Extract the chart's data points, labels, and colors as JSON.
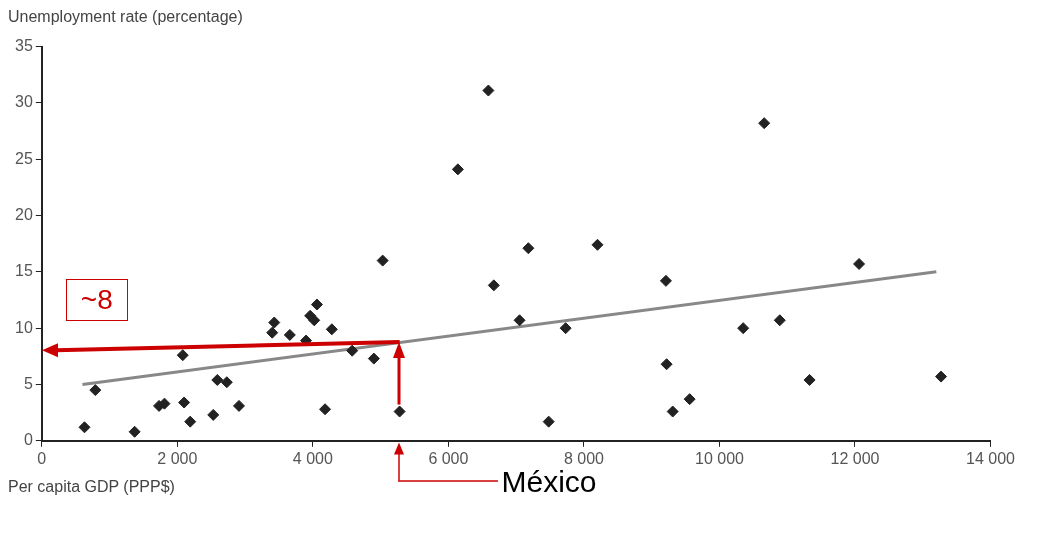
{
  "chart_data": {
    "type": "scatter",
    "xlabel": "Per capita GDP (PPP$)",
    "ylabel": "Unemployment rate (percentage)",
    "xlim": [
      0,
      14000
    ],
    "xticks": [
      0,
      {
        "value": 2000,
        "label": "2 000"
      },
      {
        "value": 4000,
        "label": "4 000"
      },
      {
        "value": 6000,
        "label": "6 000"
      },
      {
        "value": 8000,
        "label": "8 000"
      },
      {
        "value": 10000,
        "label": "10 000"
      },
      {
        "value": 12000,
        "label": "12 000"
      },
      {
        "value": 14000,
        "label": "14 000"
      }
    ],
    "ylim": [
      0,
      35
    ],
    "yticks": [
      0,
      5,
      10,
      15,
      20,
      25,
      30,
      35
    ],
    "grid": false,
    "legend": false,
    "marker": "diamond",
    "series": [
      {
        "color": "#222222",
        "x": [
          630,
          790,
          1370,
          1730,
          1810,
          2080,
          2100,
          2190,
          2530,
          2590,
          2730,
          2910,
          3400,
          3430,
          3660,
          3900,
          3960,
          4020,
          4060,
          4180,
          4280,
          4580,
          4900,
          5030,
          5280,
          6140,
          6590,
          6670,
          7050,
          7180,
          7480,
          7730,
          8200,
          9210,
          9220,
          9310,
          9560,
          10350,
          10660,
          10890,
          11330,
          12060,
          13270
        ],
        "values": [
          1.2,
          4.5,
          0.8,
          3.1,
          3.3,
          7.6,
          3.4,
          1.7,
          2.3,
          5.4,
          5.2,
          3.1,
          9.6,
          10.5,
          9.4,
          8.9,
          11.1,
          10.7,
          12.1,
          2.8,
          9.9,
          8.0,
          7.3,
          16.0,
          2.6,
          24.1,
          31.1,
          13.8,
          10.7,
          17.1,
          1.7,
          10.0,
          17.4,
          14.2,
          6.8,
          2.6,
          3.7,
          10.0,
          28.2,
          10.7,
          5.4,
          15.7,
          5.7
        ]
      },
      {
        "type": "line",
        "color": "#888888",
        "x": [
          600,
          13200
        ],
        "values": [
          5.0,
          15.0
        ],
        "marker": "none"
      }
    ],
    "annotations": [
      "~8",
      "México"
    ]
  }
}
